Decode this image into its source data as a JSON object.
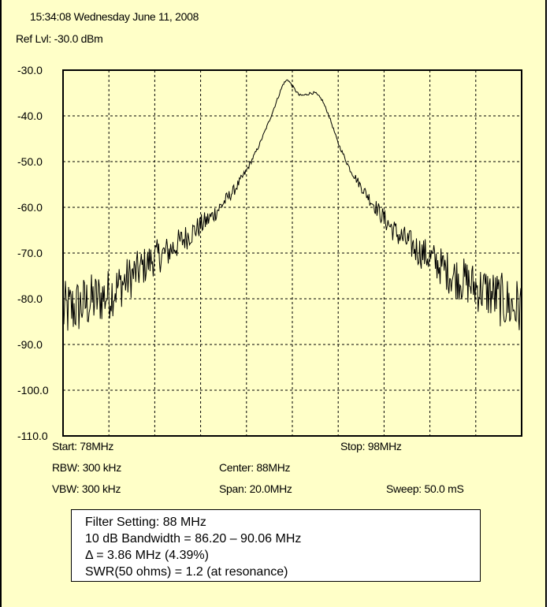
{
  "header": {
    "timestamp": "15:34:08 Wednesday June 11, 2008",
    "ref_level": "Ref Lvl: -30.0 dBm"
  },
  "settings": {
    "start": "Start: 78MHz",
    "stop": "Stop: 98MHz",
    "rbw": "RBW: 300 kHz",
    "center": "Center: 88MHz",
    "vbw": "VBW: 300 kHz",
    "span": "Span: 20.0MHz",
    "sweep": "Sweep: 50.0 mS"
  },
  "notes": [
    "Filter Setting: 88 MHz",
    "10 dB Bandwidth = 86.20 – 90.06 MHz",
    "Δ = 3.86 MHz (4.39%)",
    "SWR(50 ohms) = 1.2 (at resonance)"
  ],
  "chart_data": {
    "type": "line",
    "x_unit": "MHz",
    "y_unit": "dBm",
    "xlim": [
      78,
      98
    ],
    "ylim": [
      -110,
      -30
    ],
    "y_ticks": [
      -30,
      -40,
      -50,
      -60,
      -70,
      -80,
      -90,
      -100,
      -110
    ],
    "y_tick_labels": [
      "-30.0",
      "-40.0",
      "-50.0",
      "-60.0",
      "-70.0",
      "-80.0",
      "-90.0",
      "-100.0",
      "-110.0"
    ],
    "grid": true,
    "x_grid_divisions": 10,
    "colors": {
      "background": "#ffffc8",
      "trace": "#000000",
      "grid": "#000000"
    },
    "series": [
      {
        "x": [
          78,
          78.5,
          79,
          79.5,
          80,
          80.5,
          81,
          81.5,
          82,
          82.5,
          83,
          83.5,
          84,
          84.5,
          85,
          85.5,
          86,
          86.5,
          87,
          87.3,
          87.6,
          87.8,
          88,
          88.3,
          88.5,
          88.8,
          89,
          89.3,
          89.6,
          90,
          90.5,
          91,
          91.5,
          92,
          92.5,
          93,
          93.5,
          94,
          94.5,
          95,
          95.5,
          96,
          96.5,
          97,
          97.5,
          98
        ],
        "y": [
          -83,
          -82,
          -81,
          -80,
          -79,
          -77,
          -75,
          -73,
          -71,
          -70,
          -68,
          -66,
          -64,
          -62,
          -59,
          -56,
          -52,
          -47,
          -41,
          -37,
          -33,
          -32,
          -33.5,
          -35.5,
          -35.5,
          -35,
          -35,
          -36.5,
          -40,
          -46,
          -51.5,
          -55.5,
          -59,
          -62.5,
          -65.5,
          -67.5,
          -69.5,
          -71,
          -73,
          -75,
          -76,
          -77.5,
          -78.5,
          -80,
          -81.5,
          -82
        ]
      }
    ]
  }
}
